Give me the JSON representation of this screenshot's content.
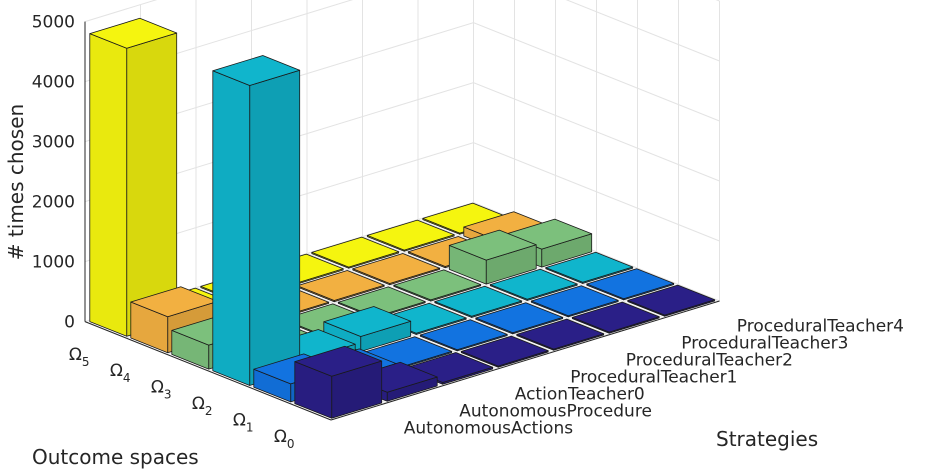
{
  "chart_data": {
    "type": "bar3d",
    "title": "",
    "zlabel": "# times chosen",
    "ylabel": "Outcome spaces",
    "xlabel": "Strategies",
    "zlim": [
      0,
      5000
    ],
    "zticks": [
      "0",
      "1000",
      "2000",
      "3000",
      "4000",
      "5000"
    ],
    "grid": true,
    "strategies": [
      "AutonomousActions",
      "AutonomousProcedure",
      "ActionTeacher0",
      "ProceduralTeacher1",
      "ProceduralTeacher2",
      "ProceduralTeacher3",
      "ProceduralTeacher4"
    ],
    "outcome_spaces": [
      {
        "symbol": "Ω",
        "sub": "0"
      },
      {
        "symbol": "Ω",
        "sub": "1"
      },
      {
        "symbol": "Ω",
        "sub": "2"
      },
      {
        "symbol": "Ω",
        "sub": "3"
      },
      {
        "symbol": "Ω",
        "sub": "4"
      },
      {
        "symbol": "Ω",
        "sub": "5"
      }
    ],
    "colors": [
      "#2a1f87",
      "#1273e0",
      "#10b5cc",
      "#7cc07c",
      "#f2b041",
      "#f5f50f"
    ],
    "values": [
      [
        700,
        150,
        30,
        20,
        20,
        20,
        20
      ],
      [
        300,
        100,
        20,
        20,
        20,
        20,
        20
      ],
      [
        5000,
        150,
        250,
        20,
        20,
        20,
        20
      ],
      [
        400,
        20,
        20,
        20,
        20,
        400,
        300
      ],
      [
        600,
        20,
        20,
        20,
        20,
        20,
        150
      ],
      [
        4800,
        20,
        20,
        20,
        20,
        20,
        20
      ]
    ]
  }
}
